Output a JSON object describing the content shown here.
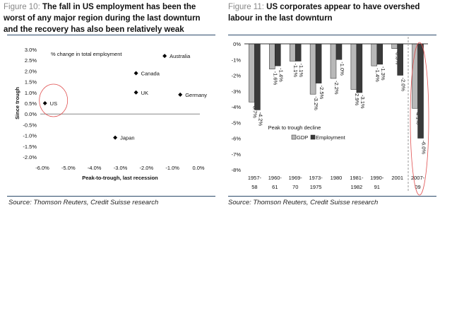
{
  "chart_data": [
    {
      "type": "scatter",
      "figure_label": "Figure 10:",
      "title": "The fall in US employment has been the worst of any major region during the last downturn and the recovery has also been relatively weak",
      "annotation": "% change in total employment",
      "xlabel": "Peak-to-trough, last recession",
      "ylabel": "Since trough",
      "xlim": [
        -6.0,
        0.0
      ],
      "ylim": [
        -2.0,
        3.0
      ],
      "xticks": [
        "-6.0%",
        "-5.0%",
        "-4.0%",
        "-3.0%",
        "-2.0%",
        "-1.0%",
        "0.0%"
      ],
      "yticks": [
        "3.0%",
        "2.5%",
        "2.0%",
        "1.5%",
        "1.0%",
        "0.5%",
        "0.0%",
        "-0.5%",
        "-1.0%",
        "-1.5%",
        "-2.0%"
      ],
      "points": [
        {
          "label": "US",
          "x": -5.9,
          "y": 0.5,
          "highlighted": true
        },
        {
          "label": "Japan",
          "x": -3.2,
          "y": -1.1
        },
        {
          "label": "UK",
          "x": -2.4,
          "y": 1.0
        },
        {
          "label": "Canada",
          "x": -2.4,
          "y": 1.9
        },
        {
          "label": "Australia",
          "x": -1.3,
          "y": 2.7
        },
        {
          "label": "Germany",
          "x": -0.7,
          "y": 0.9
        }
      ],
      "source": "Source: Thomson Reuters, Credit Suisse research",
      "highlight_color": "#e05050"
    },
    {
      "type": "bar",
      "figure_label": "Figure 11:",
      "title": "US corporates appear to have overshed labour in the last downturn",
      "annotation": "Peak to trough decline",
      "ylim": [
        -8,
        0
      ],
      "yticks": [
        "0%",
        "-1%",
        "-2%",
        "-3%",
        "-4%",
        "-5%",
        "-6%",
        "-7%",
        "-8%"
      ],
      "categories": [
        [
          "1957-",
          "58"
        ],
        [
          "1960-",
          "61"
        ],
        [
          "1969-",
          "70"
        ],
        [
          "1973-",
          "1975"
        ],
        [
          "1980",
          ""
        ],
        [
          "1981-",
          "1982"
        ],
        [
          "1990-",
          "91"
        ],
        [
          "2001",
          ""
        ],
        [
          "2007-",
          "09"
        ]
      ],
      "series": [
        {
          "name": "GDP",
          "color": "#b8b8b8",
          "values": [
            -3.7,
            -1.6,
            -1.1,
            -3.2,
            -2.2,
            -2.9,
            -1.4,
            -0.3,
            -4.1
          ]
        },
        {
          "name": "Employment",
          "color": "#3a3a3a",
          "values": [
            -4.2,
            -1.4,
            -1.1,
            -2.5,
            -1.0,
            -3.1,
            -1.3,
            -2.0,
            -6.0
          ]
        }
      ],
      "legend": "bottom-center",
      "highlighted_category": "2007-09",
      "source": "Source: Thomson Reuters, Credit Suisse research"
    }
  ]
}
